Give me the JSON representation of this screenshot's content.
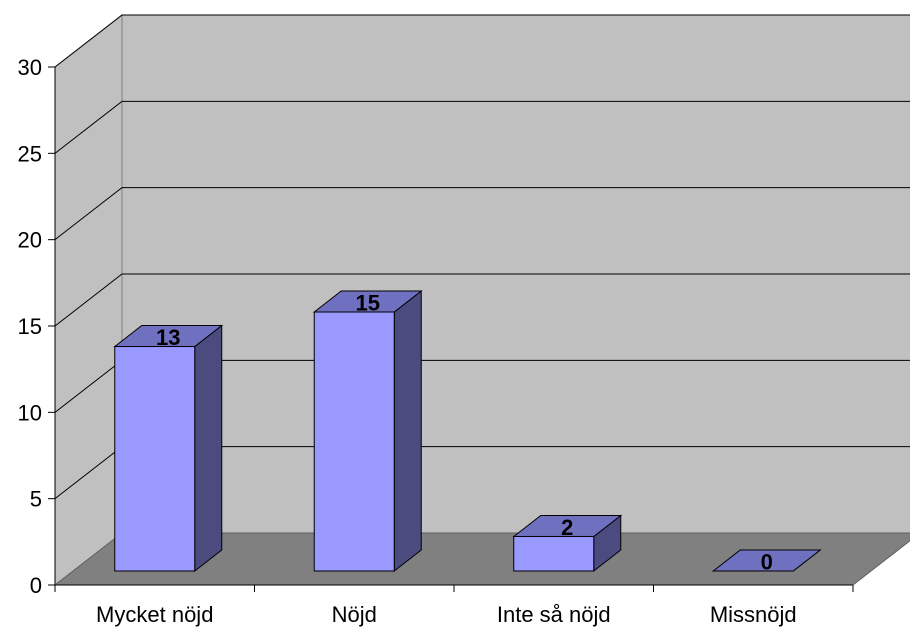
{
  "chart_data": {
    "type": "bar",
    "style": "3d-column",
    "categories": [
      "Mycket nöjd",
      "Nöjd",
      "Inte så nöjd",
      "Missnöjd"
    ],
    "values": [
      13,
      15,
      2,
      0
    ],
    "data_labels": [
      "13",
      "15",
      "2",
      "0"
    ],
    "title": "",
    "xlabel": "",
    "ylabel": "",
    "ylim": [
      0,
      30
    ],
    "yticks": [
      0,
      5,
      10,
      15,
      20,
      25,
      30
    ],
    "ytick_labels": [
      "0",
      "5",
      "10",
      "15",
      "20",
      "25",
      "30"
    ],
    "grid": true,
    "legend": "none",
    "colors": {
      "bar_front": "#9999ff",
      "bar_side": "#4b4b7f",
      "bar_top": "#7070c0",
      "wall": "#c0c0c0",
      "floor": "#808080"
    }
  }
}
